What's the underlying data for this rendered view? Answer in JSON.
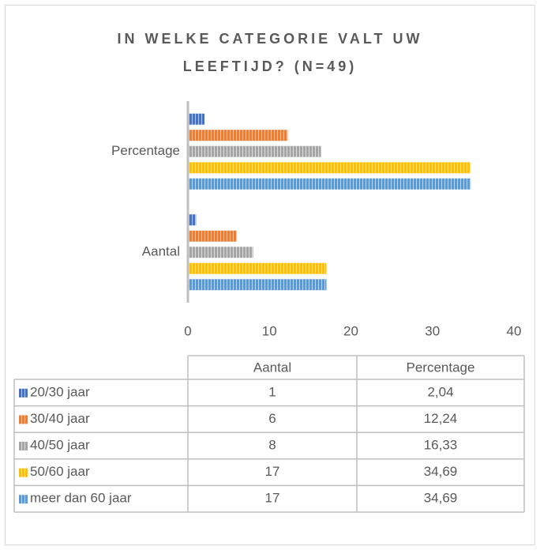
{
  "chart_data": {
    "type": "bar",
    "orientation": "horizontal",
    "title": "IN WELKE CATEGORIE VALT UW LEEFTIJD? (N=49)",
    "categories": [
      "Aantal",
      "Percentage"
    ],
    "series": [
      {
        "name": "20/30 jaar",
        "color": "#4472c4",
        "values": [
          1,
          2.04
        ],
        "value_labels": [
          "1",
          "2,04"
        ]
      },
      {
        "name": "30/40 jaar",
        "color": "#ed7d31",
        "values": [
          6,
          12.24
        ],
        "value_labels": [
          "6",
          "12,24"
        ]
      },
      {
        "name": "40/50 jaar",
        "color": "#a5a5a5",
        "values": [
          8,
          16.33
        ],
        "value_labels": [
          "8",
          "16,33"
        ]
      },
      {
        "name": "50/60 jaar",
        "color": "#ffc000",
        "values": [
          17,
          34.69
        ],
        "value_labels": [
          "17",
          "34,69"
        ]
      },
      {
        "name": "meer dan 60 jaar",
        "color": "#5b9bd5",
        "values": [
          17,
          34.69
        ],
        "value_labels": [
          "17",
          "34,69"
        ]
      }
    ],
    "xlim": [
      0,
      40
    ],
    "xticks": [
      0,
      10,
      20,
      30,
      40
    ],
    "grid": false
  }
}
